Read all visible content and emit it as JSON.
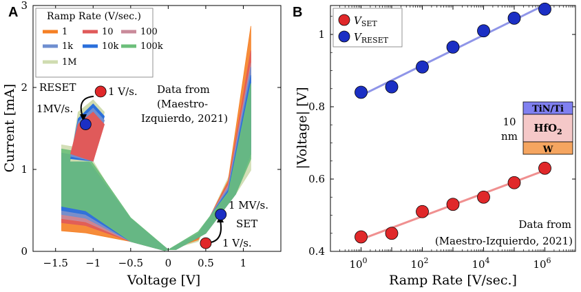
{
  "panels": {
    "a_letter": "A",
    "b_letter": "B"
  },
  "chart_data": [
    {
      "type": "line",
      "title": "",
      "xlabel": "Voltage [V]",
      "ylabel": "Current [mA]",
      "xlim": [
        -1.8,
        1.5
      ],
      "ylim": [
        0,
        3
      ],
      "xticks": [
        -1.5,
        -1,
        -0.5,
        0,
        0.5,
        1
      ],
      "xtick_labels": [
        "−1.5",
        "−1",
        "−0.5",
        "0",
        "0.5",
        "1"
      ],
      "yticks": [
        0,
        1,
        2,
        3
      ],
      "ytick_labels": [
        "0",
        "1",
        "2",
        "3"
      ],
      "legend": {
        "title": "Ramp Rate (V/sec.)",
        "position": "top-left",
        "entries": [
          {
            "label": "1",
            "color": "#f58025"
          },
          {
            "label": "10",
            "color": "#e05a5a"
          },
          {
            "label": "100",
            "color": "#c98a9a"
          },
          {
            "label": "1k",
            "color": "#6f8fd0"
          },
          {
            "label": "10k",
            "color": "#2a6fdb"
          },
          {
            "label": "100k",
            "color": "#6cbf7a"
          },
          {
            "label": "1M",
            "color": "#cfdcb0"
          }
        ]
      },
      "annotations": {
        "reset_label": "RESET",
        "reset_slow": "1 V/s.",
        "reset_fast": "1MV/s.",
        "data_from": [
          "Data from",
          "(Maestro-",
          "Izquierdo, 2021)"
        ],
        "set_fast": "1 MV/s.",
        "set_label": "SET",
        "set_slow": "1 V/s."
      },
      "points": {
        "reset_slow": {
          "x": -0.9,
          "y": 1.95
        },
        "reset_fast": {
          "x": -1.1,
          "y": 1.55
        },
        "set_slow": {
          "x": 0.5,
          "y": 0.1
        },
        "set_fast": {
          "x": 0.7,
          "y": 0.45
        }
      },
      "envelopes": [
        {
          "name": "1",
          "color": "#f58025",
          "right_peak": 2.75,
          "left_high": 1.15,
          "left_low": 0.25
        },
        {
          "name": "10",
          "color": "#e05a5a",
          "right_peak": 2.45,
          "left_high": 1.0,
          "left_low": 0.35
        },
        {
          "name": "100",
          "color": "#c98a9a",
          "right_peak": 2.3,
          "left_high": 1.05,
          "left_low": 0.4
        },
        {
          "name": "1k",
          "color": "#6f8fd0",
          "right_peak": 2.25,
          "left_high": 1.1,
          "left_low": 0.45
        },
        {
          "name": "10k",
          "color": "#2a6fdb",
          "right_peak": 2.15,
          "left_high": 1.15,
          "left_low": 0.5
        },
        {
          "name": "100k",
          "color": "#6cbf7a",
          "right_peak": 2.05,
          "left_high": 1.2,
          "left_low": 0.55
        },
        {
          "name": "1M",
          "color": "#cfdcb0",
          "right_peak": 1.8,
          "left_high": 1.25,
          "left_low": 0.6
        }
      ]
    },
    {
      "type": "scatter",
      "title": "",
      "xlabel": "Ramp Rate [V/sec.]",
      "ylabel": "|Voltage| [V]",
      "xscale": "log",
      "xlim_log10": [
        -1,
        7
      ],
      "ylim": [
        0.4,
        1.08
      ],
      "xtick_exponents": [
        0,
        2,
        4,
        6
      ],
      "xtick_base": "10",
      "yticks": [
        0.4,
        0.6,
        0.8,
        1.0
      ],
      "ytick_labels": [
        "0.4",
        "0.6",
        "0.8",
        "1"
      ],
      "series": [
        {
          "name": "V_SET",
          "label_main": "V",
          "label_sub": "SET",
          "color": "#e0282a",
          "line_color": "#f09090",
          "x_log10": [
            0,
            1,
            2,
            3,
            4,
            5,
            6
          ],
          "values": [
            0.44,
            0.45,
            0.51,
            0.53,
            0.55,
            0.59,
            0.63
          ]
        },
        {
          "name": "V_RESET",
          "label_main": "V",
          "label_sub": "RESET",
          "color": "#1b2fc4",
          "line_color": "#8f95e8",
          "x_log10": [
            0,
            1,
            2,
            3,
            4,
            5,
            6
          ],
          "values": [
            0.84,
            0.855,
            0.91,
            0.965,
            1.01,
            1.045,
            1.07
          ]
        }
      ],
      "legend_position": "top-left",
      "data_from": [
        "Data from",
        "(Maestro-Izquierdo, 2021)"
      ],
      "inset": {
        "top_layer": "TiN/Ti",
        "top_color": "#8080f0",
        "middle_main": "HfO",
        "middle_sub": "2",
        "middle_color": "#f5c8c8",
        "bottom_layer": "W",
        "bottom_color": "#f5a560",
        "thickness_value": "10",
        "thickness_unit": "nm"
      }
    }
  ]
}
